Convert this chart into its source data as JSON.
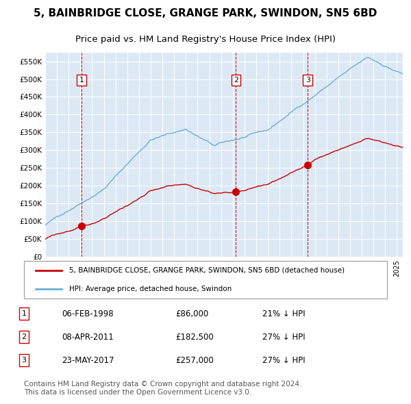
{
  "title1": "5, BAINBRIDGE CLOSE, GRANGE PARK, SWINDON, SN5 6BD",
  "title2": "Price paid vs. HM Land Registry's House Price Index (HPI)",
  "title_fontsize": 11,
  "subtitle_fontsize": 9.5,
  "background_color": "#dce9f5",
  "plot_bg_color": "#dce9f5",
  "ylim": [
    0,
    575000
  ],
  "yticks": [
    0,
    50000,
    100000,
    150000,
    200000,
    250000,
    300000,
    350000,
    400000,
    450000,
    500000,
    550000
  ],
  "ytick_labels": [
    "£0",
    "£50K",
    "£100K",
    "£150K",
    "£200K",
    "£250K",
    "£300K",
    "£350K",
    "£400K",
    "£450K",
    "£500K",
    "£550K"
  ],
  "xlim_start": 1995.0,
  "xlim_end": 2025.5,
  "hpi_color": "#6baed6",
  "price_color": "#cc0000",
  "sale_marker_color": "#cc0000",
  "dashed_line_color": "#cc0000",
  "legend_house_label": "5, BAINBRIDGE CLOSE, GRANGE PARK, SWINDON, SN5 6BD (detached house)",
  "legend_hpi_label": "HPI: Average price, detached house, Swindon",
  "sales": [
    {
      "num": 1,
      "date_label": "06-FEB-1998",
      "date_x": 1998.1,
      "price": 86000,
      "pct": "21%",
      "label": "£86,000"
    },
    {
      "num": 2,
      "date_label": "08-APR-2011",
      "date_x": 2011.27,
      "price": 182500,
      "pct": "27%",
      "label": "£182,500"
    },
    {
      "num": 3,
      "date_label": "23-MAY-2017",
      "date_x": 2017.39,
      "price": 257000,
      "pct": "27%",
      "label": "£257,000"
    }
  ],
  "footnote": "Contains HM Land Registry data © Crown copyright and database right 2024.\nThis data is licensed under the Open Government Licence v3.0.",
  "footnote_fontsize": 7.5,
  "grid_color": "#ffffff",
  "label_box_color": "#cc0000"
}
